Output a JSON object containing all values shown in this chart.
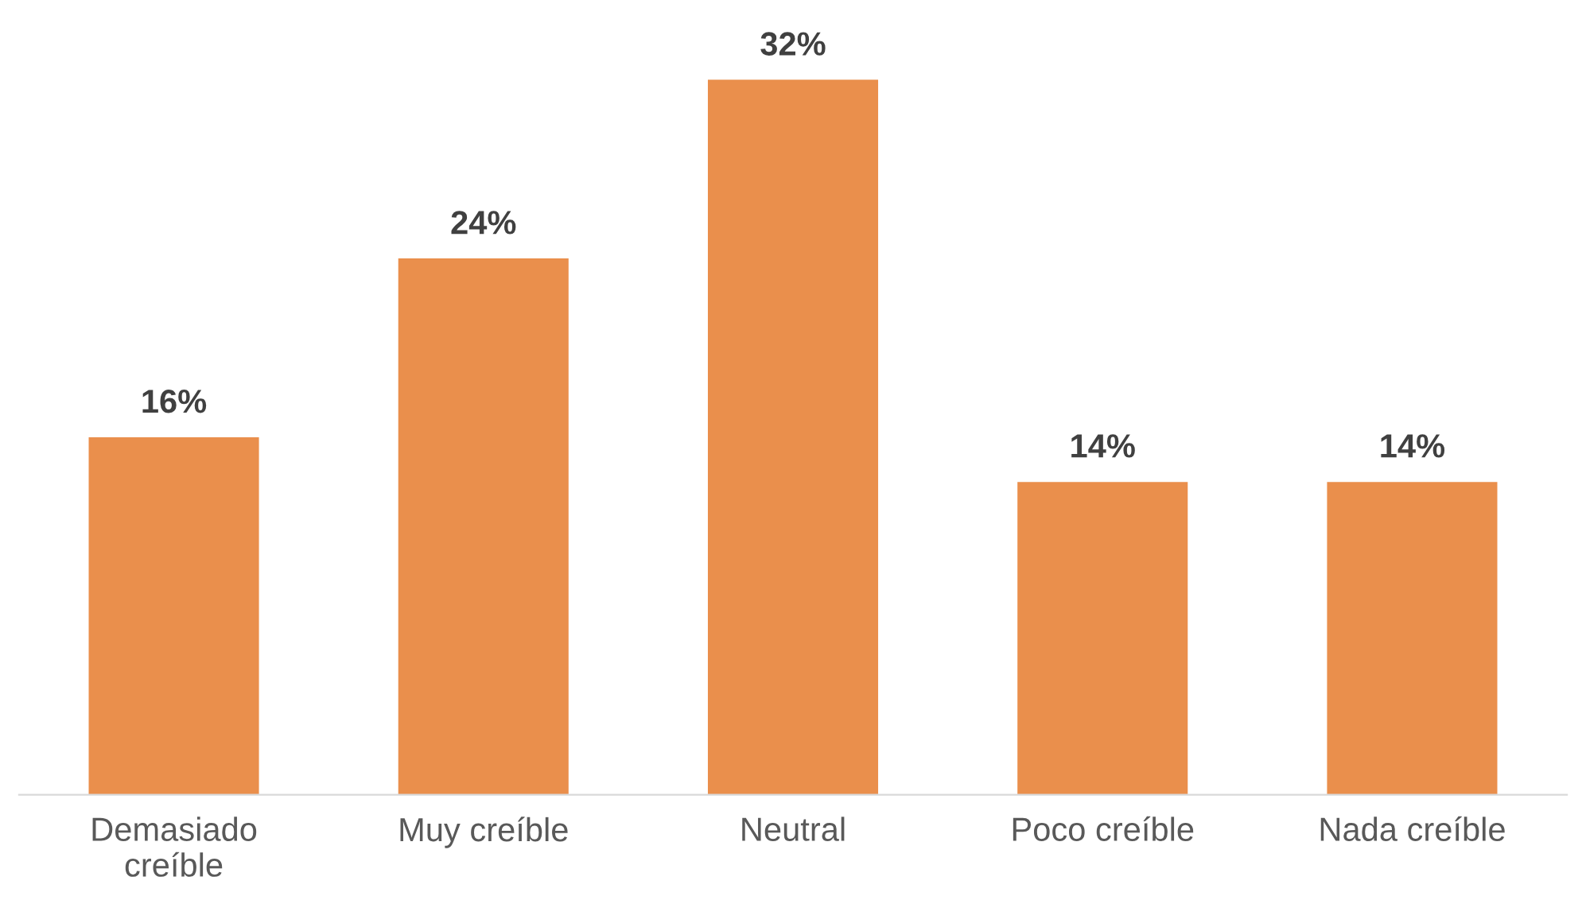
{
  "chart_data": {
    "type": "bar",
    "categories": [
      "Demasiado creíble",
      "Muy creíble",
      "Neutral",
      "Poco creíble",
      "Nada creíble"
    ],
    "values": [
      16,
      24,
      32,
      14,
      14
    ],
    "value_labels": [
      "16%",
      "24%",
      "32%",
      "14%",
      "14%"
    ],
    "color": "#ea8f4c",
    "tick_labels": "x",
    "grid": false,
    "legend": false
  }
}
